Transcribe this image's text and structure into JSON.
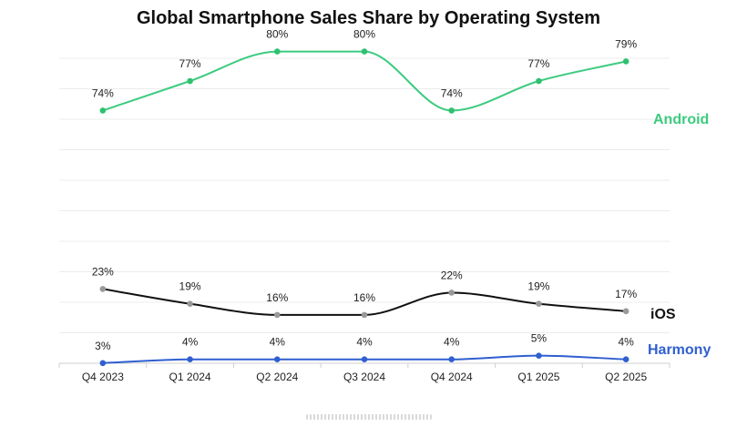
{
  "chart_data": {
    "type": "line",
    "title": "Global Smartphone Sales Share by Operating System",
    "xlabel": "",
    "ylabel": "",
    "categories": [
      "Q4 2023",
      "Q1 2024",
      "Q2 2024",
      "Q3 2024",
      "Q4 2024",
      "Q1 2025",
      "Q2 2025"
    ],
    "ylim": [
      0,
      100
    ],
    "grid": true,
    "legend": "right-end labels",
    "series": [
      {
        "name": "Android",
        "values": [
          74,
          77,
          80,
          80,
          74,
          77,
          79
        ],
        "labels": [
          "74%",
          "77%",
          "80%",
          "80%",
          "74%",
          "77%",
          "79%"
        ],
        "line_color": "#3ccb7f",
        "marker_color": "#2ec16f",
        "label_color": "#3ccb7f"
      },
      {
        "name": "iOS",
        "values": [
          23,
          19,
          16,
          16,
          22,
          19,
          17
        ],
        "labels": [
          "23%",
          "19%",
          "16%",
          "16%",
          "22%",
          "19%",
          "17%"
        ],
        "line_color": "#111111",
        "marker_color": "#999999",
        "label_color": "#111111"
      },
      {
        "name": "Harmony",
        "values": [
          3,
          4,
          4,
          4,
          4,
          5,
          4
        ],
        "labels": [
          "3%",
          "4%",
          "4%",
          "4%",
          "4%",
          "5%",
          "4%"
        ],
        "line_color": "#2f5fd0",
        "marker_color": "#2f5fd0",
        "label_color": "#2f5fd0"
      }
    ]
  }
}
